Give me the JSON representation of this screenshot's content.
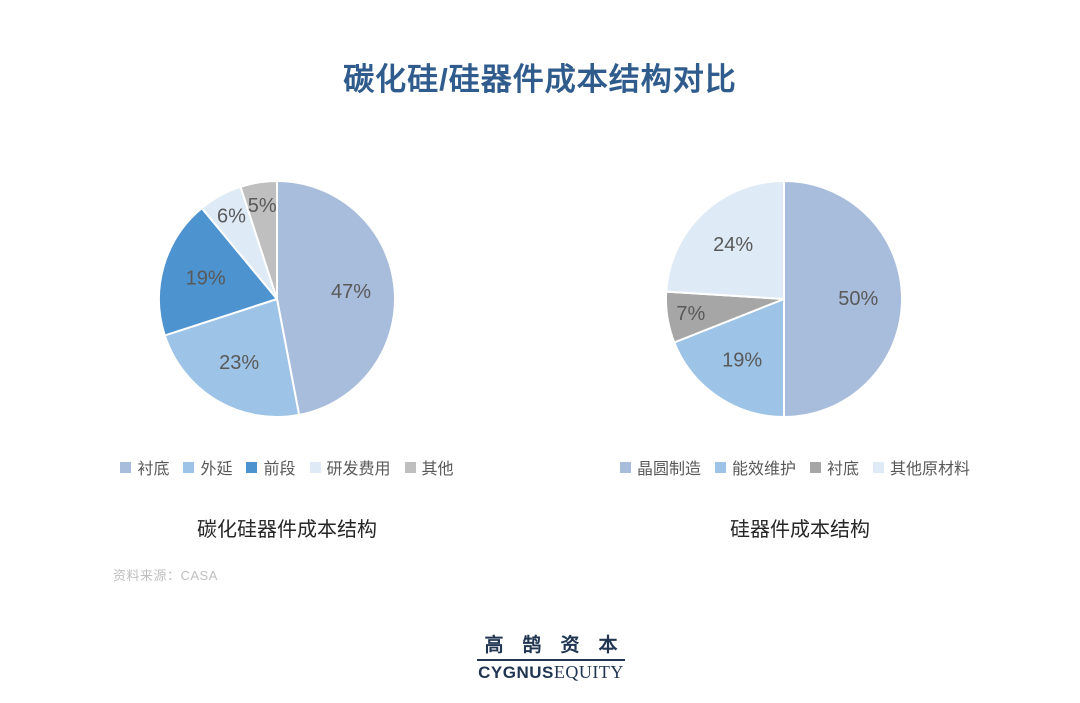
{
  "title": "碳化硅/硅器件成本结构对比",
  "source_note": "资料来源：CASA",
  "logo": {
    "chinese": "高鹄资本",
    "english_bold": "CYGNUS",
    "english_serif": "EQUITY"
  },
  "colors": {
    "title_navy": "#2F5C8C",
    "logo_navy": "#1F3552",
    "label_gray": "#595959",
    "caption_dark": "#262626",
    "source_gray": "#BFBFBF",
    "slice_border": "#FFFFFF"
  },
  "chart_data": [
    {
      "type": "pie",
      "title": "碳化硅器件成本结构",
      "unit": "%",
      "start_angle_deg": 0,
      "direction": "clockwise",
      "legend_position": "bottom",
      "slices": [
        {
          "label": "衬底",
          "value": 47,
          "color": "#A8BCDC"
        },
        {
          "label": "外延",
          "value": 23,
          "color": "#9DC3E6"
        },
        {
          "label": "前段",
          "value": 19,
          "color": "#4D93D0"
        },
        {
          "label": "研发费用",
          "value": 6,
          "color": "#DEEAF6"
        },
        {
          "label": "其他",
          "value": 5,
          "color": "#BFBFBF"
        }
      ]
    },
    {
      "type": "pie",
      "title": "硅器件成本结构",
      "unit": "%",
      "start_angle_deg": 0,
      "direction": "clockwise",
      "legend_position": "bottom",
      "slices": [
        {
          "label": "晶圆制造",
          "value": 50,
          "color": "#A8BCDC"
        },
        {
          "label": "能效维护",
          "value": 19,
          "color": "#9DC3E6"
        },
        {
          "label": "衬底",
          "value": 7,
          "color": "#A6A6A6"
        },
        {
          "label": "其他原材料",
          "value": 24,
          "color": "#DEEAF6"
        }
      ]
    }
  ]
}
